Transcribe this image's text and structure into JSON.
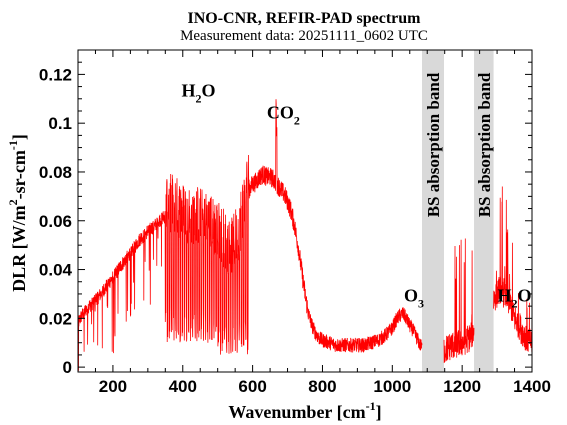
{
  "chart_data": {
    "type": "line",
    "title": "INO-CNR, REFIR-PAD spectrum",
    "subtitle": "Measurement data: 20251111_0602 UTC",
    "xlabel": {
      "base": "Wavenumber [cm",
      "sup": "-1",
      "end": "]"
    },
    "ylabel": {
      "p1": "DLR [W/m",
      "s1": "2",
      "p2": "-sr-cm",
      "s2": "-1",
      "p3": "]"
    },
    "xlim": [
      100,
      1400
    ],
    "ylim": [
      -0.002,
      0.13
    ],
    "xticks": [
      200,
      400,
      600,
      800,
      1000,
      1200,
      1400
    ],
    "yticks": [
      0,
      0.02,
      0.04,
      0.06,
      0.08,
      0.1,
      0.12
    ],
    "xtick_labels": [
      "200",
      "400",
      "600",
      "800",
      "1000",
      "1200",
      "1400"
    ],
    "ytick_labels": [
      "0",
      "0.02",
      "0.04",
      "0.06",
      "0.08",
      "0.1",
      "0.12"
    ],
    "line_color": "#ff0000",
    "band_color": "#d9d9d9",
    "absorption_bands": [
      {
        "x0": 1085,
        "x1": 1148,
        "label": "BS absorption band"
      },
      {
        "x0": 1234,
        "x1": 1290,
        "label": "BS absorption band"
      }
    ],
    "annotations": [
      {
        "id": "h2o-left",
        "base": "H",
        "sub": "2",
        "end": "O",
        "x": 445,
        "y": 0.111
      },
      {
        "id": "co2",
        "base": "CO",
        "sub": "2",
        "end": "",
        "x": 688,
        "y": 0.102
      },
      {
        "id": "o3",
        "base": "O",
        "sub": "3",
        "end": "",
        "x": 1062,
        "y": 0.027
      },
      {
        "id": "h2o-right",
        "base": "H",
        "sub": "2",
        "end": "O",
        "x": 1350,
        "y": 0.027
      }
    ],
    "series": [
      {
        "x": [
          100,
          110,
          120,
          130,
          140,
          150,
          160,
          170,
          180,
          190,
          200,
          210,
          220,
          230,
          240,
          250,
          260,
          270,
          280,
          290,
          300,
          310,
          320,
          330,
          340,
          350,
          360,
          370,
          380,
          390,
          400,
          410,
          420,
          430,
          440,
          450,
          460,
          470,
          480,
          490,
          500,
          510,
          520,
          530,
          540,
          550,
          560,
          570,
          580,
          590,
          600,
          610,
          620,
          630,
          640,
          650,
          660,
          670,
          680,
          690,
          700,
          710,
          720,
          730,
          740,
          750,
          760,
          770,
          780,
          790,
          800,
          820,
          840,
          860,
          880,
          900,
          920,
          940,
          960,
          980,
          1000,
          1010,
          1020,
          1030,
          1040,
          1050,
          1060,
          1070,
          1080,
          1085,
          1150,
          1160,
          1170,
          1180,
          1190,
          1200,
          1210,
          1220,
          1230,
          1234,
          1290,
          1300,
          1310,
          1320,
          1330,
          1340,
          1350,
          1360,
          1370,
          1380,
          1390,
          1400
        ],
        "y": [
          0.018,
          0.021,
          0.023,
          0.025,
          0.026,
          0.028,
          0.029,
          0.031,
          0.033,
          0.035,
          0.037,
          0.039,
          0.041,
          0.043,
          0.045,
          0.047,
          0.049,
          0.051,
          0.053,
          0.054,
          0.056,
          0.057,
          0.058,
          0.06,
          0.061,
          0.062,
          0.063,
          0.063,
          0.062,
          0.06,
          0.059,
          0.059,
          0.058,
          0.058,
          0.058,
          0.057,
          0.056,
          0.055,
          0.054,
          0.053,
          0.052,
          0.05,
          0.048,
          0.046,
          0.046,
          0.048,
          0.052,
          0.06,
          0.068,
          0.073,
          0.075,
          0.076,
          0.078,
          0.079,
          0.078,
          0.078,
          0.077,
          0.075,
          0.073,
          0.071,
          0.068,
          0.064,
          0.058,
          0.05,
          0.04,
          0.03,
          0.022,
          0.017,
          0.014,
          0.012,
          0.011,
          0.01,
          0.009,
          0.009,
          0.009,
          0.009,
          0.009,
          0.01,
          0.011,
          0.013,
          0.016,
          0.019,
          0.021,
          0.022,
          0.02,
          0.017,
          0.015,
          0.012,
          0.009,
          0.008,
          0.007,
          0.008,
          0.009,
          0.009,
          0.01,
          0.01,
          0.011,
          0.012,
          0.014,
          0.015,
          0.028,
          0.03,
          0.032,
          0.03,
          0.028,
          0.025,
          0.02,
          0.018,
          0.015,
          0.013,
          0.011,
          0.01
        ]
      }
    ]
  }
}
